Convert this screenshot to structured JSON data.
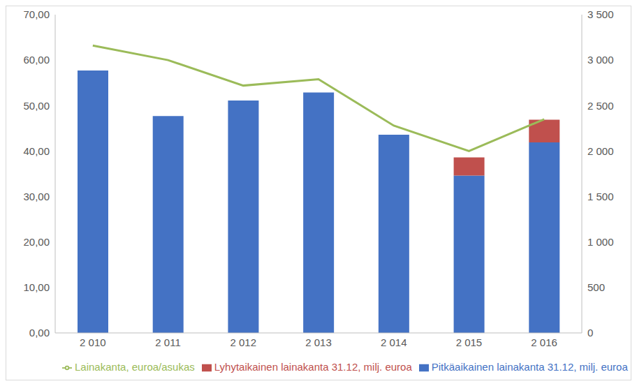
{
  "chart_data": {
    "type": "bar",
    "stacked": true,
    "grid": false,
    "legend": "bottom",
    "categories": [
      "2 010",
      "2 011",
      "2 012",
      "2 013",
      "2 014",
      "2 015",
      "2 016"
    ],
    "series": [
      {
        "name": "Pitkäaikainen lainakanta 31.12, milj. euroa",
        "type": "bar",
        "color": "#4472c4",
        "values": [
          57.7,
          47.7,
          51.1,
          52.9,
          43.6,
          34.6,
          41.9
        ]
      },
      {
        "name": "Lyhytaikainen lainakanta 31.12, milj. euroa",
        "type": "bar",
        "color": "#c0504d",
        "values": [
          0,
          0,
          0,
          0,
          0,
          4.0,
          5.0
        ]
      },
      {
        "name": "Lainakanta, euroa/asukas",
        "type": "line",
        "axis": "y2",
        "color": "#9bbb59",
        "marker": "none",
        "values": [
          3160,
          3000,
          2720,
          2790,
          2280,
          2000,
          2350
        ]
      }
    ],
    "ylim": [
      0,
      70
    ],
    "yticks": [
      {
        "value": 0,
        "label": "0,00"
      },
      {
        "value": 10,
        "label": "10,00"
      },
      {
        "value": 20,
        "label": "20,00"
      },
      {
        "value": 30,
        "label": "30,00"
      },
      {
        "value": 40,
        "label": "40,00"
      },
      {
        "value": 50,
        "label": "50,00"
      },
      {
        "value": 60,
        "label": "60,00"
      },
      {
        "value": 70,
        "label": "70,00"
      }
    ],
    "y2lim": [
      0,
      3500
    ],
    "y2ticks": [
      0,
      500,
      {
        "value": 1000,
        "label": "1 000"
      },
      {
        "value": 1500,
        "label": "1 500"
      },
      {
        "value": 2000,
        "label": "2 000"
      },
      {
        "value": 2500,
        "label": "2 500"
      },
      {
        "value": 3000,
        "label": "3 000"
      },
      {
        "value": 3500,
        "label": "3 500"
      }
    ]
  }
}
